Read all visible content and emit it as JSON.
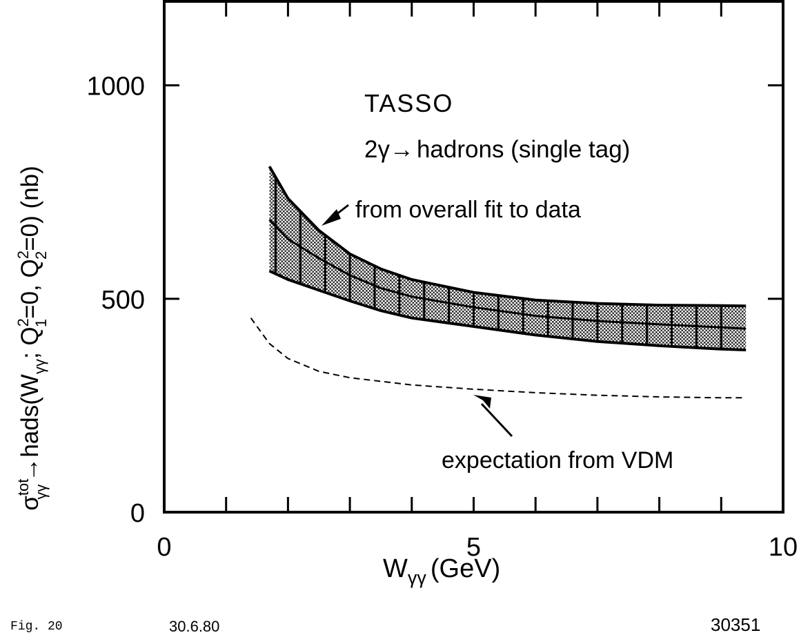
{
  "chart_data": {
    "type": "line",
    "xlabel": "W",
    "xlabel_sub": "γγ",
    "xlabel_unit": "(GeV)",
    "ylabel": {
      "sigma": "σ",
      "sup": "tot",
      "sub": "γγ",
      "arrow": "→",
      "hads": "hads",
      "open": "(W",
      "sub2": "γγ",
      "mid": "; Q",
      "q1sup": "2",
      "q1sub": "1",
      "eq1": "=0, Q",
      "q2sup": "2",
      "q2sub": "2",
      "close": "=0) (nb)"
    },
    "xlim": [
      0,
      10
    ],
    "ylim": [
      0,
      1200
    ],
    "x_ticks": [
      0,
      5,
      10
    ],
    "y_ticks": [
      0,
      500,
      1000
    ],
    "annotations": {
      "experiment": "TASSO",
      "process_prefix": "2γ",
      "process_arrow": "→",
      "process_suffix": "hadrons (single tag)",
      "fit_label": "from overall fit to data",
      "vdm_label": "expectation from VDM"
    },
    "series": [
      {
        "style": "hatched band",
        "x": [
          1.7,
          2.0,
          2.5,
          3.0,
          3.5,
          4.0,
          5.0,
          6.0,
          7.0,
          8.0,
          9.0,
          9.4
        ],
        "upper": [
          810,
          735,
          660,
          605,
          570,
          545,
          515,
          497,
          489,
          485,
          484,
          483
        ],
        "central": [
          685,
          640,
          595,
          555,
          525,
          505,
          480,
          460,
          448,
          440,
          433,
          430
        ],
        "lower": [
          565,
          545,
          520,
          495,
          472,
          455,
          435,
          415,
          400,
          390,
          382,
          380
        ]
      },
      {
        "style": "dashed",
        "x": [
          1.4,
          1.7,
          2.0,
          2.5,
          3.0,
          4.0,
          5.0,
          6.0,
          7.0,
          8.0,
          9.0,
          9.4
        ],
        "y": [
          455,
          395,
          360,
          330,
          315,
          298,
          288,
          280,
          274,
          270,
          268,
          268
        ]
      }
    ]
  },
  "footer": {
    "fig": "Fig. 20",
    "date": "30.6.80",
    "number": "30351"
  }
}
